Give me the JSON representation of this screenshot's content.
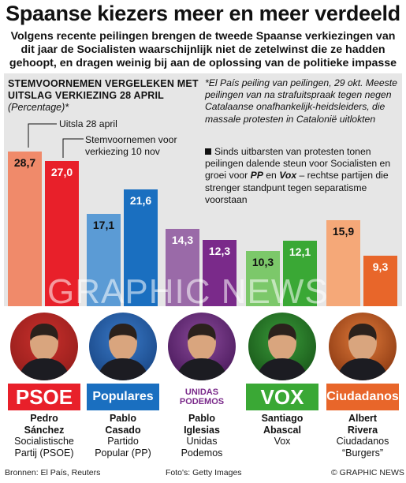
{
  "header": {
    "title": "Spaanse kiezers meer en meer verdeeld",
    "subtitle": "Volgens recente peilingen brengen de tweede Spaanse verkiezingen van dit jaar de Socialisten waarschijnlijk niet de zetelwinst die ze hadden gehoopt, en dragen weinig bij aan de oplossing van de politieke impasse"
  },
  "chart_data": {
    "type": "bar",
    "title": "Stemvoornemen Vergeleken met Uitslag Verkiezing 28 April",
    "unit": "(Percentage)*",
    "categories": [
      "PSOE",
      "PP",
      "Unidas Podemos",
      "Vox",
      "Ciudadanos"
    ],
    "series": [
      {
        "name": "Uitsla 28 april",
        "values": [
          28.7,
          17.1,
          14.3,
          10.3,
          15.9
        ]
      },
      {
        "name": "Stemvoornemen voor verkiezing 10 nov",
        "values": [
          27.0,
          21.6,
          12.3,
          12.1,
          9.3
        ]
      }
    ],
    "labels": [
      [
        "28,7",
        "27,0"
      ],
      [
        "17,1",
        "21,6"
      ],
      [
        "14,3",
        "12,3"
      ],
      [
        "10,3",
        "12,1"
      ],
      [
        "15,9",
        "9,3"
      ]
    ],
    "ylim": [
      0,
      30
    ],
    "colors": [
      [
        "#f08a6a",
        "#e8202a"
      ],
      [
        "#5b9bd5",
        "#1a6fc0"
      ],
      [
        "#9a6aa8",
        "#7a2a8a"
      ],
      [
        "#7cc86a",
        "#3aa835"
      ],
      [
        "#f5a878",
        "#e8662a"
      ]
    ],
    "legend": [
      "Uitsla 28 april",
      "Stemvoornemen voor verkiezing 10 nov"
    ]
  },
  "notes": {
    "note1": "*El País peiling van peilingen, 29 okt. Meeste peilingen van na strafuitspraak tegen negen Catalaanse onafhankelijk-heidsleiders, die massale protesten in Catalonië uitlokten",
    "note2_a": "Sinds uitbarsten van protesten tonen peilingen dalende steun voor Socialisten en groei voor ",
    "note2_pp": "PP",
    "note2_and": " en ",
    "note2_vox": "Vox",
    "note2_b": " – rechtse partijen die strenger standpunt tegen separatisme voorstaan"
  },
  "parties": [
    {
      "logo": "PSOE",
      "logo_color": "#e8202a",
      "first": "Pedro",
      "last": "Sánchez",
      "desc1": "Socialistische",
      "desc2": "Partij (PSOE)"
    },
    {
      "logo": "Populares",
      "logo_color": "#1a6fc0",
      "first": "Pablo",
      "last": "Casado",
      "desc1": "Partido",
      "desc2": "Popular (PP)"
    },
    {
      "logo": "UNIDAS PODEMOS",
      "logo_color": "#7a2a8a",
      "first": "Pablo",
      "last": "Iglesias",
      "desc1": "Unidas",
      "desc2": "Podemos"
    },
    {
      "logo": "VOX",
      "logo_color": "#3aa835",
      "first": "Santiago",
      "last": "Abascal",
      "desc1": "Vox",
      "desc2": ""
    },
    {
      "logo": "Ciudadanos",
      "logo_color": "#e8662a",
      "first": "Albert",
      "last": "Rivera",
      "desc1": "Ciudadanos",
      "desc2": "“Burgers”"
    }
  ],
  "footer": {
    "sources": "Bronnen: El País, Reuters",
    "photos": "Foto's: Getty Images",
    "credit": "© GRAPHIC NEWS"
  },
  "watermark": "GRAPHIC NEWS"
}
